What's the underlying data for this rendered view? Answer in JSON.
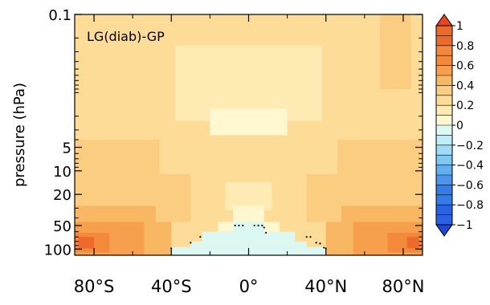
{
  "chart_data": {
    "type": "heatmap",
    "title": "LG(diab)-GP",
    "xlabel": "",
    "ylabel": "pressure (hPa)",
    "x_ticks": [
      {
        "value": -80,
        "label": "80°S"
      },
      {
        "value": -40,
        "label": "40°S"
      },
      {
        "value": 0,
        "label": "0°"
      },
      {
        "value": 40,
        "label": "40°N"
      },
      {
        "value": 80,
        "label": "80°N"
      }
    ],
    "y_ticks": [
      {
        "value": 0.1,
        "label": "0.1"
      },
      {
        "value": 5,
        "label": "5"
      },
      {
        "value": 10,
        "label": "10"
      },
      {
        "value": 20,
        "label": "20"
      },
      {
        "value": 50,
        "label": "50"
      },
      {
        "value": 100,
        "label": "100"
      }
    ],
    "xlim": [
      -90,
      90
    ],
    "ylim": [
      0.1,
      120
    ],
    "y_scale": "log-reversed",
    "colorbar": {
      "ticks": [
        1,
        0.8,
        0.6,
        0.4,
        0.2,
        0,
        -0.2,
        -0.4,
        -0.6,
        -0.8,
        -1
      ],
      "tick_labels": [
        "1",
        "0.8",
        "0.6",
        "0.4",
        "0.2",
        "0",
        "−0.2",
        "−0.4",
        "−0.6",
        "−0.8",
        "−1"
      ],
      "levels": [
        {
          "from": 1.0,
          "to": 1.2,
          "color": "#e8451a"
        },
        {
          "from": 0.8,
          "to": 1.0,
          "color": "#ee6a2a"
        },
        {
          "from": 0.6,
          "to": 0.8,
          "color": "#f3893a"
        },
        {
          "from": 0.5,
          "to": 0.6,
          "color": "#f6a04d"
        },
        {
          "from": 0.4,
          "to": 0.5,
          "color": "#f8b763"
        },
        {
          "from": 0.3,
          "to": 0.4,
          "color": "#fbcd80"
        },
        {
          "from": 0.2,
          "to": 0.3,
          "color": "#fddc98"
        },
        {
          "from": 0.1,
          "to": 0.2,
          "color": "#feeab3"
        },
        {
          "from": 0.0,
          "to": 0.1,
          "color": "#fff7cf"
        },
        {
          "from": -0.1,
          "to": 0.0,
          "color": "#dbf9f2"
        },
        {
          "from": -0.2,
          "to": -0.1,
          "color": "#bdeefa"
        },
        {
          "from": -0.3,
          "to": -0.2,
          "color": "#9fdcf8"
        },
        {
          "from": -0.4,
          "to": -0.3,
          "color": "#80c7f3"
        },
        {
          "from": -0.5,
          "to": -0.4,
          "color": "#62aff0"
        },
        {
          "from": -0.6,
          "to": -0.5,
          "color": "#4a96ec"
        },
        {
          "from": -0.8,
          "to": -0.6,
          "color": "#347ce8"
        },
        {
          "from": -1.0,
          "to": -0.8,
          "color": "#2a62e4"
        },
        {
          "from": -1.2,
          "to": -1.0,
          "color": "#2146d8"
        }
      ]
    },
    "regions": [
      {
        "lat": [
          -90,
          90
        ],
        "p": [
          0.1,
          120
        ],
        "value": 0.2
      },
      {
        "lat": [
          -38,
          38
        ],
        "p": [
          0.25,
          2.3
        ],
        "value": 0.15
      },
      {
        "lat": [
          -20,
          20
        ],
        "p": [
          1.6,
          3.5
        ],
        "value": 0.05
      },
      {
        "lat": [
          -90,
          -60
        ],
        "p": [
          0.1,
          4
        ],
        "value": 0.25
      },
      {
        "lat": [
          60,
          90
        ],
        "p": [
          0.1,
          4
        ],
        "value": 0.25
      },
      {
        "lat": [
          68,
          84
        ],
        "p": [
          0.1,
          0.9
        ],
        "value": 0.3
      },
      {
        "lat": [
          -90,
          -46
        ],
        "p": [
          4,
          45
        ],
        "value": 0.3
      },
      {
        "lat": [
          46,
          90
        ],
        "p": [
          4,
          45
        ],
        "value": 0.3
      },
      {
        "lat": [
          -90,
          -30
        ],
        "p": [
          11,
          45
        ],
        "value": 0.35
      },
      {
        "lat": [
          30,
          90
        ],
        "p": [
          11,
          45
        ],
        "value": 0.35
      },
      {
        "lat": [
          -90,
          -48
        ],
        "p": [
          28,
          45
        ],
        "value": 0.4
      },
      {
        "lat": [
          48,
          90
        ],
        "p": [
          28,
          45
        ],
        "value": 0.4
      },
      {
        "lat": [
          -90,
          -54
        ],
        "p": [
          45,
          120
        ],
        "value": 0.5
      },
      {
        "lat": [
          54,
          90
        ],
        "p": [
          45,
          120
        ],
        "value": 0.5
      },
      {
        "lat": [
          -54,
          -40
        ],
        "p": [
          45,
          120
        ],
        "value": 0.45
      },
      {
        "lat": [
          40,
          54
        ],
        "p": [
          45,
          120
        ],
        "value": 0.45
      },
      {
        "lat": [
          -90,
          -72
        ],
        "p": [
          62,
          110
        ],
        "value": 0.7
      },
      {
        "lat": [
          72,
          90
        ],
        "p": [
          62,
          110
        ],
        "value": 0.65
      },
      {
        "lat": [
          -88,
          -80
        ],
        "p": [
          70,
          98
        ],
        "value": 0.85
      },
      {
        "lat": [
          82,
          88
        ],
        "p": [
          70,
          98
        ],
        "value": 0.8
      },
      {
        "lat": [
          -12,
          12
        ],
        "p": [
          14,
          32
        ],
        "value": 0.1
      },
      {
        "lat": [
          -8,
          8
        ],
        "p": [
          28,
          45
        ],
        "value": 0.05
      },
      {
        "lat": [
          -16,
          16
        ],
        "p": [
          45,
          60
        ],
        "value": 0.05
      },
      {
        "lat": [
          -8,
          8
        ],
        "p": [
          45,
          60
        ],
        "value": -0.05
      },
      {
        "lat": [
          -24,
          24
        ],
        "p": [
          60,
          80
        ],
        "value": -0.05
      },
      {
        "lat": [
          -30,
          30
        ],
        "p": [
          80,
          95
        ],
        "value": -0.05
      },
      {
        "lat": [
          -40,
          40
        ],
        "p": [
          95,
          120
        ],
        "value": -0.05
      }
    ],
    "stipple_points": [
      [
        -7,
        50
      ],
      [
        -5,
        50
      ],
      [
        -3,
        50
      ],
      [
        3,
        50
      ],
      [
        5,
        50
      ],
      [
        7,
        50
      ],
      [
        8,
        53
      ],
      [
        -25,
        70
      ],
      [
        -30,
        83
      ],
      [
        -40,
        98
      ],
      [
        30,
        70
      ],
      [
        32,
        70
      ],
      [
        9,
        62
      ],
      [
        35,
        83
      ],
      [
        37,
        85
      ],
      [
        39,
        96
      ],
      [
        40,
        98
      ]
    ]
  }
}
